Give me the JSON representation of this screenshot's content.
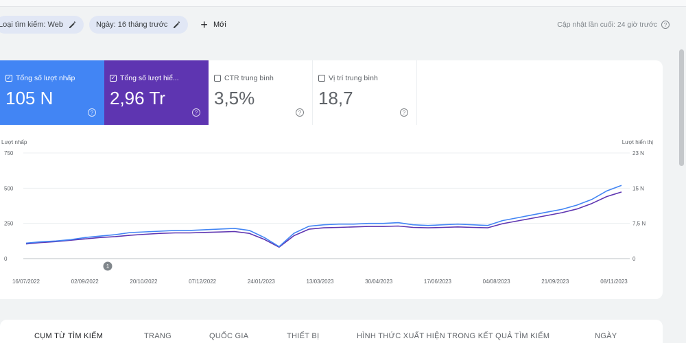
{
  "toolbar": {
    "search_type_chip": "Loại tìm kiếm: Web",
    "date_chip": "Ngày: 16 tháng trước",
    "new_label": "Mới",
    "last_updated": "Cập nhật lần cuối: 24 giờ trước"
  },
  "metrics": [
    {
      "label": "Tổng số lượt nhấp",
      "value": "105 N",
      "checked": true,
      "color": "#4285f4"
    },
    {
      "label": "Tổng số lượt hiể...",
      "value": "2,96 Tr",
      "checked": true,
      "color": "#5e35b1"
    },
    {
      "label": "CTR trung bình",
      "value": "3,5%",
      "checked": false
    },
    {
      "label": "Vị trí trung bình",
      "value": "18,7",
      "checked": false
    }
  ],
  "tabs": [
    "CỤM TỪ TÌM KIẾM",
    "TRANG",
    "QUỐC GIA",
    "THIẾT BỊ",
    "HÌNH THỨC XUẤT HIỆN TRONG KẾT QUẢ TÌM KIẾM",
    "NGÀY"
  ],
  "chart_data": {
    "type": "line",
    "left_axis_label": "Lượt nhấp",
    "right_axis_label": "Lượt hiển thị",
    "left_ticks": [
      "750",
      "500",
      "250",
      "0"
    ],
    "right_ticks": [
      "23 N",
      "15 N",
      "7,5 N",
      "0"
    ],
    "ylim_left": [
      0,
      750
    ],
    "ylim_right": [
      0,
      23000
    ],
    "x_tick_labels": [
      "16/07/2022",
      "02/09/2022",
      "20/10/2022",
      "07/12/2022",
      "24/01/2023",
      "13/03/2023",
      "30/04/2023",
      "17/06/2023",
      "04/08/2023",
      "21/09/2023",
      "08/11/2023"
    ],
    "annotation_marker": "1",
    "colors": {
      "clicks": "#4285f4",
      "impressions": "#5e35b1"
    },
    "series": [
      {
        "name": "Lượt nhấp",
        "color": "#4285f4",
        "values": [
          110,
          120,
          125,
          135,
          150,
          160,
          170,
          185,
          190,
          195,
          200,
          200,
          205,
          210,
          215,
          200,
          150,
          85,
          180,
          230,
          240,
          245,
          245,
          250,
          250,
          255,
          240,
          235,
          240,
          245,
          240,
          235,
          270,
          290,
          310,
          330,
          350,
          380,
          420,
          480,
          520
        ]
      },
      {
        "name": "Lượt hiển thị",
        "color": "#5e35b1",
        "values": [
          3200,
          3500,
          3700,
          4000,
          4300,
          4600,
          4800,
          5100,
          5300,
          5500,
          5600,
          5600,
          5700,
          5800,
          5900,
          5500,
          4200,
          2500,
          5000,
          6400,
          6700,
          6800,
          6900,
          7000,
          7000,
          7100,
          6800,
          6700,
          6800,
          6900,
          6800,
          6700,
          7600,
          8200,
          8800,
          9400,
          10000,
          10800,
          12000,
          13500,
          14500
        ]
      }
    ]
  }
}
